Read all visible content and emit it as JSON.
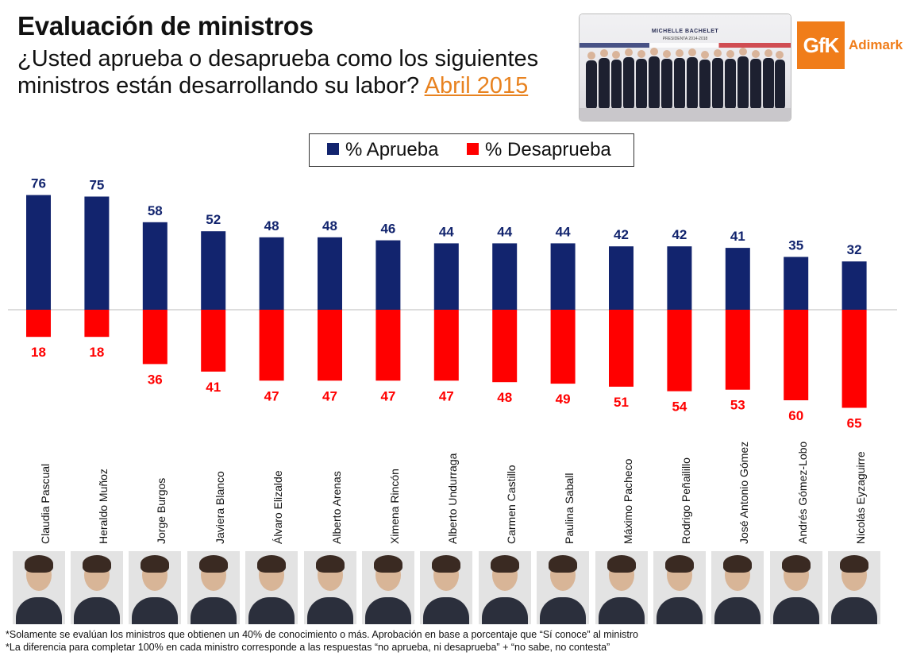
{
  "header": {
    "title": "Evaluación de ministros",
    "question": "¿Usted aprueba o desaprueba como los siguientes ministros están desarrollando su labor?",
    "date": "Abril 2015"
  },
  "banner": {
    "heading": "MICHELLE BACHELET",
    "subheading": "PRESIDENTA 2014-2018"
  },
  "logo": {
    "mark": "GfK",
    "name": "Adimark"
  },
  "legend": {
    "approve": "% Aprueba",
    "disapprove": "% Desaprueba"
  },
  "colors": {
    "approve": "#12246e",
    "disapprove": "#ff0000",
    "date": "#e8821f",
    "brand": "#f07d1a"
  },
  "chart_data": {
    "type": "bar",
    "categories": [
      "Claudia Pascual",
      "Heraldo Muñoz",
      "Jorge Burgos",
      "Javiera Blanco",
      "Álvaro Elizalde",
      "Alberto Arenas",
      "Ximena Rincón",
      "Alberto Undurraga",
      "Carmen Castillo",
      "Paulina Saball",
      "Máximo Pacheco",
      "Rodrigo Peñailillo",
      "José Antonio Gómez",
      "Andrés Gómez-Lobo",
      "Nicolás Eyzaguirre"
    ],
    "series": [
      {
        "name": "% Aprueba",
        "values": [
          76,
          75,
          58,
          52,
          48,
          48,
          46,
          44,
          44,
          44,
          42,
          42,
          41,
          35,
          32
        ]
      },
      {
        "name": "% Desaprueba",
        "values": [
          18,
          18,
          36,
          41,
          47,
          47,
          47,
          47,
          48,
          49,
          51,
          54,
          53,
          60,
          65
        ]
      }
    ],
    "layout": "diverging",
    "legend_position": "top",
    "grid": false
  },
  "footnotes": [
    "*Solamente se evalúan los ministros que obtienen un 40% de conocimiento o más. Aprobación en base a porcentaje que “Sí conoce” al ministro",
    "*La diferencia para completar 100% en cada ministro corresponde a las respuestas “no aprueba, ni desaprueba” + “no sabe, no contesta”"
  ]
}
